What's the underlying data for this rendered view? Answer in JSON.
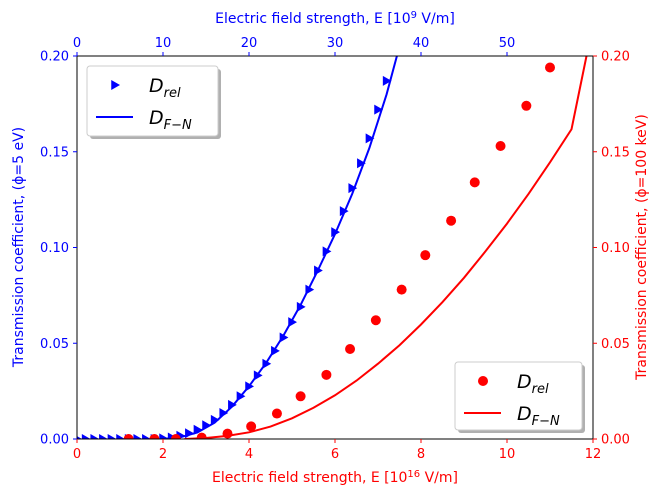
{
  "chart_data": {
    "type": "scatter",
    "x_bottom": {
      "label_prefix": "Electric field strength, E [10",
      "label_exp": "16",
      "label_suffix": " V/m]",
      "range": [
        0,
        12
      ],
      "ticks": [
        "0",
        "2",
        "4",
        "6",
        "8",
        "10",
        "12"
      ],
      "color": "#ff0000"
    },
    "x_top": {
      "label_prefix": "Electric field strength, E [10",
      "label_exp": "9",
      "label_suffix": " V/m]",
      "range": [
        0,
        60
      ],
      "ticks": [
        "0",
        "10",
        "20",
        "30",
        "40",
        "50"
      ],
      "color": "#0000ff"
    },
    "y_left": {
      "label": "Transmission coefficient, (ϕ=5 eV)",
      "range": [
        0,
        0.2
      ],
      "ticks": [
        "0.00",
        "0.05",
        "0.10",
        "0.15",
        "0.20"
      ],
      "color": "#0000ff"
    },
    "y_right": {
      "label": "Transmission coefficient, (ϕ=100 keV)",
      "range": [
        0,
        0.2
      ],
      "ticks": [
        "0.00",
        "0.05",
        "0.10",
        "0.15",
        "0.20"
      ],
      "color": "#ff0000"
    },
    "series": [
      {
        "name": "D_rel",
        "legend_main": "D",
        "legend_sub": "rel",
        "axis": "top",
        "marker": "triangle-right",
        "color": "#0000ff",
        "x": [
          0,
          1,
          2,
          3,
          4,
          5,
          6,
          7,
          8,
          9,
          10,
          11,
          12,
          13,
          14,
          15,
          16,
          17,
          18,
          19,
          20,
          21,
          22,
          23,
          24,
          25,
          26,
          27,
          28,
          29,
          30,
          31,
          32,
          33,
          34,
          35,
          36
        ],
        "y": [
          0,
          0,
          0,
          0,
          0,
          0,
          0,
          0,
          0,
          0,
          0.0003,
          0.0008,
          0.0017,
          0.003,
          0.0048,
          0.0072,
          0.01,
          0.0136,
          0.0178,
          0.0223,
          0.0275,
          0.0332,
          0.0393,
          0.046,
          0.053,
          0.061,
          0.069,
          0.078,
          0.088,
          0.098,
          0.108,
          0.119,
          0.131,
          0.144,
          0.157,
          0.172,
          0.187
        ]
      },
      {
        "name": "D_F-N",
        "legend_main": "D",
        "legend_sub": "F−N",
        "axis": "top",
        "marker": "line",
        "color": "#0000ff",
        "x": [
          10,
          12,
          14,
          16,
          18,
          20,
          22,
          24,
          26,
          28,
          30,
          32,
          34,
          36,
          37.2
        ],
        "y": [
          0,
          0.0009,
          0.0034,
          0.0085,
          0.0168,
          0.0275,
          0.0398,
          0.054,
          0.07,
          0.088,
          0.107,
          0.128,
          0.152,
          0.18,
          0.2
        ]
      },
      {
        "name": "D_rel",
        "legend_main": "D",
        "legend_sub": "rel",
        "axis": "bottom",
        "marker": "circle",
        "color": "#ff0000",
        "x": [
          1.2,
          1.8,
          2.3,
          2.9,
          3.5,
          4.05,
          4.65,
          5.2,
          5.8,
          6.35,
          6.95,
          7.55,
          8.1,
          8.7,
          9.25,
          9.85,
          10.45,
          11.0
        ],
        "y": [
          0,
          0,
          0,
          0.0007,
          0.0028,
          0.0066,
          0.0133,
          0.0223,
          0.0335,
          0.047,
          0.062,
          0.078,
          0.096,
          0.114,
          0.134,
          0.153,
          0.174,
          0.194
        ]
      },
      {
        "name": "D_F-N",
        "legend_main": "D",
        "legend_sub": "F−N",
        "axis": "bottom",
        "marker": "line",
        "color": "#ff0000",
        "x": [
          2.5,
          3,
          3.5,
          4,
          4.5,
          5,
          5.5,
          6,
          6.5,
          7,
          7.5,
          8,
          8.5,
          9,
          9.5,
          10,
          10.5,
          11,
          11.5,
          11.85
        ],
        "y": [
          0,
          0.0005,
          0.0016,
          0.0035,
          0.0065,
          0.0108,
          0.0163,
          0.0228,
          0.0305,
          0.0393,
          0.049,
          0.0598,
          0.0715,
          0.0842,
          0.098,
          0.1125,
          0.128,
          0.1445,
          0.1617,
          0.2
        ]
      }
    ],
    "legends": [
      {
        "placement": "upper-left",
        "series_index": [
          0,
          1
        ]
      },
      {
        "placement": "lower-right",
        "series_index": [
          2,
          3
        ]
      }
    ],
    "grid": false
  }
}
